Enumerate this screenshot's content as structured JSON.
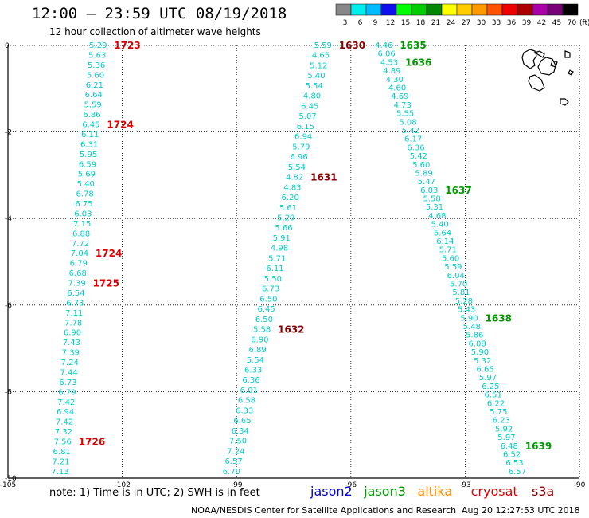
{
  "header": {
    "title": "12:00 – 23:59 UTC 08/19/2018",
    "subtitle": "12 hour collection of altimeter wave heights"
  },
  "colorbar": {
    "labels": [
      "3",
      "6",
      "9",
      "12",
      "15",
      "18",
      "21",
      "24",
      "27",
      "30",
      "33",
      "36",
      "39",
      "42",
      "45",
      "70"
    ],
    "unit": "(ft)",
    "colors": [
      "#888888",
      "#00eeee",
      "#00bbff",
      "#1010ee",
      "#00ff00",
      "#00cc00",
      "#008800",
      "#ffff00",
      "#ffcc00",
      "#ff9900",
      "#ff5500",
      "#ee0000",
      "#aa0000",
      "#aa00aa",
      "#770077",
      "#000000"
    ]
  },
  "footer": {
    "note": "note: 1) Time is in UTC; 2) SWH is in feet",
    "credit": "NOAA/NESDIS Center for Satellite Applications and Research",
    "timestamp": "Aug 20 12:27:53 UTC 2018",
    "satellites": [
      {
        "name": "jason2",
        "color": "#0000dd"
      },
      {
        "name": "jason3",
        "color": "#009900"
      },
      {
        "name": "altika",
        "color": "#ff8800"
      },
      {
        "name": "cryosat",
        "color": "#dd0000"
      },
      {
        "name": "s3a",
        "color": "#880000"
      }
    ]
  },
  "chart_data": {
    "type": "scatter",
    "xlim": [
      -105,
      -90
    ],
    "ylim": [
      -10,
      0
    ],
    "xticks": [
      "-105",
      "-102",
      "-99",
      "-96",
      "-93",
      "-90"
    ],
    "yticks": [
      "0",
      "-2",
      "-4",
      "-6",
      "-8",
      "-10"
    ],
    "value_color": "#00cccc",
    "series": [
      {
        "name": "cryosat",
        "color": "#dd0000",
        "x_top": -102.8,
        "x_bottom": -103.8,
        "values": [
          "5.29",
          "5.63",
          "5.36",
          "5.60",
          "6.21",
          "6.64",
          "5.59",
          "6.86",
          "6.45",
          "6.11",
          "6.31",
          "5.95",
          "6.59",
          "5.69",
          "5.40",
          "6.78",
          "6.75",
          "6.03",
          "7.15",
          "6.88",
          "7.72",
          "7.04",
          "6.79",
          "6.68",
          "7.39",
          "6.54",
          "6.73",
          "7.11",
          "7.78",
          "6.90",
          "7.43",
          "7.39",
          "7.24",
          "7.44",
          "6.73",
          "6.79",
          "7.42",
          "6.94",
          "7.42",
          "7.32",
          "7.56",
          "6.81",
          "7.21",
          "7.13"
        ],
        "labels": [
          {
            "text": "1723",
            "idx": 0
          },
          {
            "text": "1724",
            "idx": 8
          },
          {
            "text": "1724",
            "idx": 21
          },
          {
            "text": "1725",
            "idx": 24
          },
          {
            "text": "1726",
            "idx": 40
          }
        ]
      },
      {
        "name": "s3a",
        "color": "#880000",
        "x_top": -96.9,
        "x_bottom": -99.3,
        "values": [
          "5.59",
          "4.65",
          "5.12",
          "5.40",
          "5.54",
          "4.80",
          "6.45",
          "5.07",
          "6.15",
          "6.94",
          "5.79",
          "6.96",
          "5.54",
          "4.82",
          "4.83",
          "6.20",
          "5.61",
          "5.29",
          "5.66",
          "5.91",
          "4.98",
          "5.71",
          "6.11",
          "5.50",
          "6.73",
          "6.50",
          "6.45",
          "6.50",
          "5.58",
          "6.90",
          "6.89",
          "5.54",
          "6.33",
          "6.36",
          "6.01",
          "6.58",
          "6.33",
          "6.65",
          "6.34",
          "7.50",
          "7.24",
          "6.57",
          "6.70"
        ],
        "labels": [
          {
            "text": "1630",
            "idx": 0
          },
          {
            "text": "1631",
            "idx": 13
          },
          {
            "text": "1632",
            "idx": 28
          }
        ]
      },
      {
        "name": "jason3",
        "color": "#009900",
        "x_top": -95.3,
        "x_bottom": -91.8,
        "values": [
          "4.46",
          "6.06",
          "4.53",
          "4.89",
          "4.30",
          "4.60",
          "4.69",
          "4.73",
          "5.55",
          "5.08",
          "5.42",
          "6.17",
          "6.36",
          "5.42",
          "5.60",
          "5.89",
          "5.47",
          "6.03",
          "5.58",
          "5.31",
          "4.68",
          "5.40",
          "5.64",
          "6.14",
          "5.71",
          "5.60",
          "5.59",
          "6.04",
          "5.70",
          "5.81",
          "5.28",
          "5.43",
          "5.90",
          "5.48",
          "5.86",
          "6.08",
          "5.90",
          "5.32",
          "6.65",
          "5.97",
          "6.25",
          "6.51",
          "6.22",
          "5.75",
          "6.23",
          "5.92",
          "5.97",
          "6.48",
          "6.52",
          "6.53",
          "6.57"
        ],
        "labels": [
          {
            "text": "1635",
            "idx": 0
          },
          {
            "text": "1636",
            "idx": 2
          },
          {
            "text": "1637",
            "idx": 17
          },
          {
            "text": "1638",
            "idx": 32
          },
          {
            "text": "1639",
            "idx": 47
          }
        ]
      }
    ]
  }
}
